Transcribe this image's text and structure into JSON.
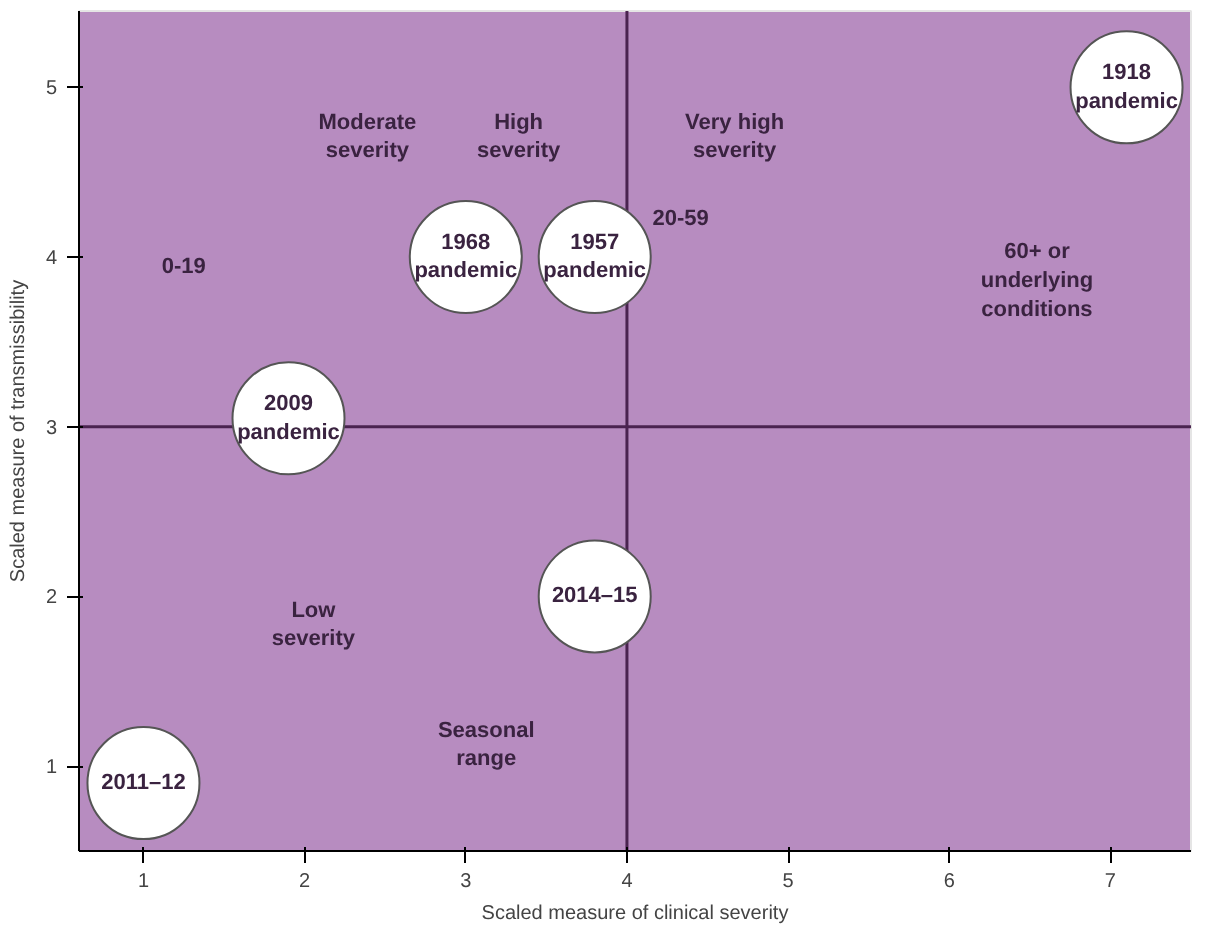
{
  "chart_data": {
    "type": "scatter",
    "xlabel": "Scaled measure of clinical severity",
    "ylabel": "Scaled measure of transmissibility",
    "xlim": [
      0.6,
      7.5
    ],
    "ylim": [
      0.5,
      5.45
    ],
    "xticks": [
      1,
      2,
      3,
      4,
      5,
      6,
      7
    ],
    "yticks": [
      1,
      2,
      3,
      4,
      5
    ],
    "grid": false,
    "marker": "circle",
    "series": [
      {
        "color": "#ffffff",
        "x": [
          1.0,
          1.9,
          3.0,
          3.8,
          3.8,
          7.1
        ],
        "values": [
          0.9,
          3.05,
          4.0,
          4.0,
          2.0,
          5.0
        ]
      }
    ],
    "ref_lines": [
      {
        "axis": "y",
        "value": 3,
        "color": "#4a2350"
      },
      {
        "axis": "x",
        "value": 4,
        "color": "#4a2350"
      }
    ],
    "annotations": [
      {
        "text": "2011–12",
        "x": 1.0,
        "y": 0.9
      },
      {
        "text": "2009\npandemic",
        "x": 1.9,
        "y": 3.05
      },
      {
        "text": "1968\npandemic",
        "x": 3.0,
        "y": 4.0
      },
      {
        "text": "1957\npandemic",
        "x": 3.8,
        "y": 4.0
      },
      {
        "text": "2014–15",
        "x": 3.8,
        "y": 2.0
      },
      {
        "text": "1918\npandemic",
        "x": 7.1,
        "y": 5.0
      },
      "Moderate\nseverity",
      "High\nseverity",
      "Very high\nseverity",
      "Low\nseverity",
      "Seasonal\nrange",
      "0-19",
      "20-59",
      "60+ or\nunderlying\nconditions"
    ]
  }
}
